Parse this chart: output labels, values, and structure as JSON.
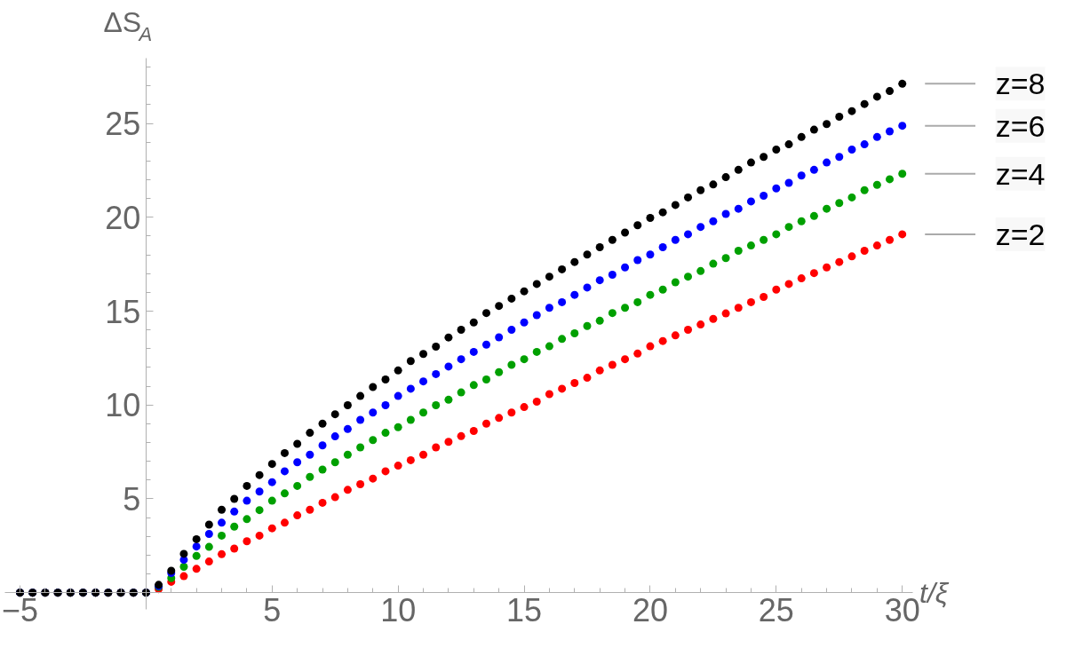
{
  "chart_data": {
    "type": "scatter",
    "marker": "circle",
    "xlabel": "t/ξ",
    "ylabel": "ΔS$_{A}$",
    "xlim": [
      -5.6,
      30.4
    ],
    "ylim": [
      -0.9,
      28.5
    ],
    "xticks": [
      {
        "value": -5,
        "label": "−5"
      },
      5,
      10,
      15,
      20,
      25,
      30
    ],
    "yticks": [
      5,
      10,
      15,
      20,
      25
    ],
    "x": [
      -5,
      -4.5,
      -4,
      -3.5,
      -3,
      -2.5,
      -2,
      -1.5,
      -1,
      -0.5,
      0,
      0.5,
      1,
      1.5,
      2,
      2.5,
      3,
      3.5,
      4,
      4.5,
      5,
      5.5,
      6,
      6.5,
      7,
      7.5,
      8,
      8.5,
      9,
      9.5,
      10,
      10.5,
      11,
      11.5,
      12,
      12.5,
      13,
      13.5,
      14,
      14.5,
      15,
      15.5,
      16,
      16.5,
      17,
      17.5,
      18,
      18.5,
      19,
      19.5,
      20,
      20.5,
      21,
      21.5,
      22,
      22.5,
      23,
      23.5,
      24,
      24.5,
      25,
      25.5,
      26,
      26.5,
      27,
      27.5,
      28,
      28.5,
      29,
      29.5,
      30
    ],
    "series": [
      {
        "name": "z=2",
        "color": "#ff0000",
        "values": [
          0,
          0,
          0,
          0,
          0,
          0,
          0,
          0,
          0,
          0,
          0,
          0.19,
          0.58,
          0.88,
          1.27,
          1.66,
          2.05,
          2.35,
          2.74,
          3.04,
          3.43,
          3.73,
          4.12,
          4.42,
          4.79,
          5.09,
          5.48,
          5.78,
          6.08,
          6.47,
          6.77,
          7.06,
          7.35,
          7.74,
          8.04,
          8.34,
          8.62,
          9.01,
          9.31,
          9.6,
          9.89,
          10.18,
          10.58,
          10.87,
          11.17,
          11.45,
          11.84,
          12.14,
          12.44,
          12.74,
          13.13,
          13.41,
          13.71,
          14.01,
          14.29,
          14.59,
          14.88,
          15.18,
          15.48,
          15.76,
          16.15,
          16.45,
          16.75,
          17.03,
          17.33,
          17.62,
          17.92,
          18.22,
          18.5,
          18.8,
          19.1
        ]
      },
      {
        "name": "z=4",
        "color": "#00a000",
        "values": [
          0,
          0,
          0,
          0,
          0,
          0,
          0,
          0,
          0,
          0,
          0,
          0.3,
          0.78,
          1.38,
          1.96,
          2.44,
          3.04,
          3.52,
          3.92,
          4.4,
          4.9,
          5.29,
          5.69,
          6.17,
          6.56,
          6.95,
          7.35,
          7.74,
          8.13,
          8.52,
          8.82,
          9.21,
          9.6,
          9.99,
          10.28,
          10.67,
          11.06,
          11.36,
          11.75,
          12.14,
          12.44,
          12.83,
          13.13,
          13.52,
          13.82,
          14.21,
          14.49,
          14.9,
          15.18,
          15.48,
          15.87,
          16.15,
          16.54,
          16.84,
          17.14,
          17.53,
          17.83,
          18.22,
          18.5,
          18.8,
          19.1,
          19.49,
          19.79,
          20.07,
          20.46,
          20.76,
          21.06,
          21.45,
          21.73,
          22.03,
          22.32
        ]
      },
      {
        "name": "z=6",
        "color": "#0000ff",
        "values": [
          0,
          0,
          0,
          0,
          0,
          0,
          0,
          0,
          0,
          0,
          0,
          0.35,
          1.05,
          1.75,
          2.46,
          3.13,
          3.73,
          4.32,
          4.9,
          5.39,
          5.89,
          6.47,
          6.95,
          7.35,
          7.85,
          8.33,
          8.72,
          9.21,
          9.6,
          9.99,
          10.48,
          10.87,
          11.26,
          11.65,
          12.05,
          12.44,
          12.83,
          13.22,
          13.61,
          14.01,
          14.4,
          14.79,
          15.18,
          15.48,
          15.87,
          16.26,
          16.65,
          16.94,
          17.33,
          17.72,
          18.02,
          18.41,
          18.8,
          19.1,
          19.49,
          19.79,
          20.18,
          20.46,
          20.85,
          21.15,
          21.54,
          21.84,
          22.23,
          22.53,
          22.92,
          23.22,
          23.61,
          23.89,
          24.28,
          24.58,
          24.88
        ]
      },
      {
        "name": "z=8",
        "color": "#000000",
        "values": [
          0,
          0,
          0,
          0,
          0,
          0,
          0,
          0,
          0,
          0,
          0,
          0.42,
          1.17,
          2.07,
          2.85,
          3.63,
          4.42,
          5.0,
          5.69,
          6.27,
          6.86,
          7.44,
          7.93,
          8.52,
          9.01,
          9.51,
          9.99,
          10.48,
          10.96,
          11.36,
          11.84,
          12.34,
          12.72,
          13.11,
          13.6,
          14.01,
          14.4,
          14.9,
          15.28,
          15.67,
          16.06,
          16.45,
          16.84,
          17.23,
          17.62,
          18.02,
          18.41,
          18.8,
          19.19,
          19.58,
          19.97,
          20.27,
          20.66,
          21.06,
          21.45,
          21.75,
          22.14,
          22.53,
          22.92,
          23.22,
          23.61,
          23.89,
          24.28,
          24.67,
          24.97,
          25.36,
          25.66,
          26.04,
          26.43,
          26.73,
          27.12
        ]
      }
    ]
  }
}
